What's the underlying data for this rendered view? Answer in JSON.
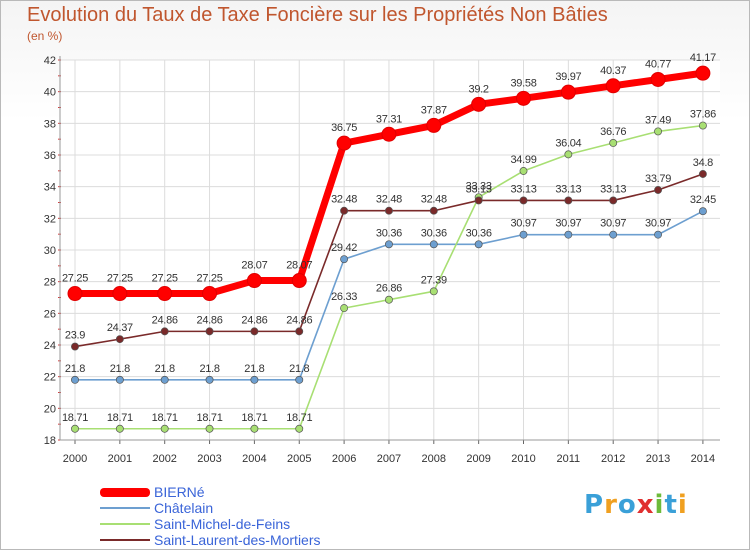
{
  "title": "Evolution du Taux de Taxe Foncière sur les Propriétés Non Bâties",
  "subtitle": "(en %)",
  "logo": {
    "text": "Proxiti",
    "colors": [
      "#3aa0d8",
      "#f0a020",
      "#3aa0d8",
      "#e03030",
      "#6dbb3a",
      "#3aa0d8",
      "#f0a020"
    ]
  },
  "chart_data": {
    "type": "line",
    "x": [
      "2000",
      "2001",
      "2002",
      "2003",
      "2004",
      "2005",
      "2006",
      "2007",
      "2008",
      "2009",
      "2010",
      "2011",
      "2012",
      "2013",
      "2014"
    ],
    "ylim": [
      18,
      42
    ],
    "yticks": [
      18,
      20,
      22,
      24,
      26,
      28,
      30,
      32,
      34,
      36,
      38,
      40,
      42
    ],
    "grid": true,
    "legend_placement": "bottom-left",
    "series": [
      {
        "name": "BIERNé",
        "color": "#ff0000",
        "values": [
          27.25,
          27.25,
          27.25,
          27.25,
          28.07,
          28.07,
          36.75,
          37.31,
          37.87,
          39.2,
          39.58,
          39.97,
          40.37,
          40.77,
          41.17
        ],
        "labels": [
          "27.25",
          "27.25",
          "27.25",
          "27.25",
          "28.07",
          "28.07",
          "36.75",
          "37.31",
          "37.87",
          "39.2",
          "39.58",
          "39.97",
          "40.37",
          "40.77",
          "41.17"
        ]
      },
      {
        "name": "Châtelain",
        "color": "#6d9fd0",
        "values": [
          21.8,
          21.8,
          21.8,
          21.8,
          21.8,
          21.8,
          29.42,
          30.36,
          30.36,
          30.36,
          30.97,
          30.97,
          30.97,
          30.97,
          32.45
        ],
        "labels": [
          "21.8",
          "21.8",
          "21.8",
          "21.8",
          "21.8",
          "21.8",
          "29.42",
          "30.36",
          "30.36",
          "30.36",
          "30.97",
          "30.97",
          "30.97",
          "30.97",
          "32.45"
        ]
      },
      {
        "name": "Saint-Michel-de-Feins",
        "color": "#a8df73",
        "values": [
          18.71,
          18.71,
          18.71,
          18.71,
          18.71,
          18.71,
          26.33,
          26.86,
          27.39,
          33.33,
          34.99,
          36.04,
          36.76,
          37.49,
          37.86
        ],
        "labels": [
          "18.71",
          "18.71",
          "18.71",
          "18.71",
          "18.71",
          "18.71",
          "26.33",
          "26.86",
          "27.39",
          "33.33",
          "34.99",
          "36.04",
          "36.76",
          "37.49",
          "37.86"
        ]
      },
      {
        "name": "Saint-Laurent-des-Mortiers",
        "color": "#7a2a2a",
        "values": [
          23.9,
          24.37,
          24.86,
          24.86,
          24.86,
          24.86,
          32.48,
          32.48,
          32.48,
          33.13,
          33.13,
          33.13,
          33.13,
          33.79,
          34.8
        ],
        "labels": [
          "23.9",
          "24.37",
          "24.86",
          "24.86",
          "24.86",
          "24.86",
          "32.48",
          "32.48",
          "32.48",
          "33.13",
          "33.13",
          "33.13",
          "33.13",
          "33.79",
          "34.8"
        ]
      }
    ]
  }
}
